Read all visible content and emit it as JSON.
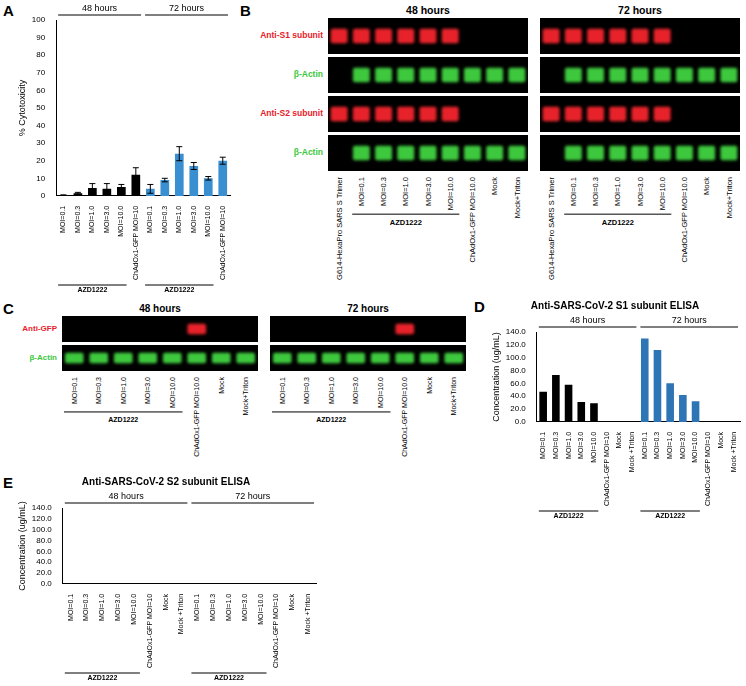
{
  "chart_data": [
    {
      "panel": "A",
      "type": "bar",
      "y_label": "% Cytotoxicity",
      "ylim": [
        0,
        100
      ],
      "yticks": [
        0,
        10,
        20,
        30,
        40,
        50,
        60,
        70,
        80,
        90,
        100
      ],
      "grid": false,
      "groups": [
        {
          "label": "48 hours",
          "color": "#000000",
          "subgroups": [
            {
              "label": "AZD1222",
              "categories": [
                "MOI=0.1",
                "MOI=0.3",
                "MOI=1.0",
                "MOI=3.0",
                "MOI=10.0"
              ],
              "values": [
                0.3,
                1.5,
                4.5,
                4,
                5
              ],
              "errors": [
                0.3,
                0.5,
                2.5,
                3,
                1.5
              ]
            },
            {
              "label": null,
              "categories": [
                "ChAdOx1-GFP MOI=10"
              ],
              "values": [
                12
              ],
              "errors": [
                4
              ]
            }
          ]
        },
        {
          "label": "72 hours",
          "color": "#3a8fd0",
          "subgroups": [
            {
              "label": "AZD1222",
              "categories": [
                "MOI=0.1",
                "MOI=0.3",
                "MOI=1.0",
                "MOI=3.0",
                "MOI=10.0"
              ],
              "values": [
                4,
                9,
                24,
                17,
                10
              ],
              "errors": [
                2.5,
                1,
                4,
                2,
                1
              ]
            },
            {
              "label": null,
              "categories": [
                "ChAdOx1-GFP MOI=10"
              ],
              "values": [
                20
              ],
              "errors": [
                2
              ]
            }
          ]
        }
      ]
    },
    {
      "panel": "D",
      "type": "bar",
      "title": "Anti-SARS-CoV-2 S1 subunit ELISA",
      "y_label": "Concentration (ug/mL)",
      "ylim": [
        0,
        140
      ],
      "yticks": [
        {
          "value": 0,
          "label": "0.0"
        },
        {
          "value": 20,
          "label": "20.0"
        },
        {
          "value": 40,
          "label": "40.0"
        },
        {
          "value": 60,
          "label": "60.0"
        },
        {
          "value": 80,
          "label": "80.0"
        },
        {
          "value": 100,
          "label": "100.0"
        },
        {
          "value": 120,
          "label": "120.0"
        },
        {
          "value": 140,
          "label": "140.0"
        }
      ],
      "grid": false,
      "groups": [
        {
          "label": "48 hours",
          "color": "#000000",
          "subgroups": [
            {
              "label": "AZD1222",
              "categories": [
                "MOI=0.1",
                "MOI=0.3",
                "MOI=1.0",
                "MOI=3.0",
                "MOI=10.0"
              ],
              "values": [
                47,
                73,
                58,
                31,
                29
              ]
            },
            {
              "label": null,
              "categories": [
                "ChAdOx1-GFP MOI=10",
                "Mock",
                "Mock +Triton"
              ],
              "values": [
                0,
                0,
                0
              ]
            }
          ]
        },
        {
          "label": "72 hours",
          "color": "#2e75b6",
          "subgroups": [
            {
              "label": "AZD1222",
              "categories": [
                "MOI=0.1",
                "MOI=0.3",
                "MOI=1.0",
                "MOI=3.0",
                "MOI=10.0"
              ],
              "values": [
                130,
                112,
                60,
                42,
                32
              ]
            },
            {
              "label": null,
              "categories": [
                "ChAdOx1-GFP MOI=10",
                "Mock",
                "Mock +Triton"
              ],
              "values": [
                0,
                0,
                0
              ]
            }
          ]
        }
      ]
    },
    {
      "panel": "E",
      "type": "bar",
      "title": "Anti-SARS-CoV-2 S2 subunit ELISA",
      "y_label": "Concentration (ug/mL)",
      "ylim": [
        0,
        140
      ],
      "yticks": [
        {
          "value": 0,
          "label": "0.0"
        },
        {
          "value": 20,
          "label": "20.0"
        },
        {
          "value": 40,
          "label": "40.0"
        },
        {
          "value": 60,
          "label": "60.0"
        },
        {
          "value": 80,
          "label": "80.0"
        },
        {
          "value": 100,
          "label": "100.0"
        },
        {
          "value": 120,
          "label": "120.0"
        },
        {
          "value": 140,
          "label": "140.0"
        }
      ],
      "grid": false,
      "groups": [
        {
          "label": "48 hours",
          "color": "#000000",
          "subgroups": [
            {
              "label": "AZD1222",
              "categories": [
                "MOI=0.1",
                "MOI=0.3",
                "MOI=1.0",
                "MOI=3.0",
                "MOI=10.0"
              ],
              "values": [
                0,
                0,
                0,
                0,
                0
              ]
            },
            {
              "label": null,
              "categories": [
                "ChAdOx1-GFP MOI=10",
                "Mock",
                "Mock +Triton"
              ],
              "values": [
                0,
                0,
                0
              ]
            }
          ]
        },
        {
          "label": "72 hours",
          "color": "#2e75b6",
          "subgroups": [
            {
              "label": "AZD1222",
              "categories": [
                "MOI=0.1",
                "MOI=0.3",
                "MOI=1.0",
                "MOI=3.0",
                "MOI=10.0"
              ],
              "values": [
                0,
                0,
                0,
                0,
                0
              ]
            },
            {
              "label": null,
              "categories": [
                "ChAdOx1-GFP MOI=10",
                "Mock",
                "Mock +Triton"
              ],
              "values": [
                0,
                0,
                0
              ]
            }
          ]
        }
      ]
    }
  ],
  "blots": [
    {
      "panel": "B",
      "rows": [
        {
          "label": "Anti-S1 subunit",
          "color": "#e8202a"
        },
        {
          "label": "β-Actin",
          "color": "#3cc83c"
        },
        {
          "label": "Anti-S2 subunit",
          "color": "#e8202a"
        },
        {
          "label": "β-Actin",
          "color": "#3cc83c"
        }
      ],
      "sections": [
        {
          "title": "48 hours",
          "lanes": [
            "G614-HexaPro SARS S Trimer",
            "MOI=0.1",
            "MOI=0.3",
            "MOI=1.0",
            "MOI=3.0",
            "MOI=10.0",
            "ChAdOx1-GFP MOI=10.0",
            "Mock",
            "Mock+Triton"
          ],
          "bracket": {
            "label": "AZD1222",
            "lanes": [
              "MOI=0.1",
              "MOI=0.3",
              "MOI=1.0",
              "MOI=3.0",
              "MOI=10.0"
            ]
          },
          "signal": [
            [
              true,
              true,
              true,
              true,
              true,
              true,
              false,
              false,
              false
            ],
            [
              false,
              true,
              true,
              true,
              true,
              true,
              true,
              true,
              true
            ],
            [
              true,
              true,
              true,
              true,
              true,
              true,
              false,
              false,
              false
            ],
            [
              false,
              true,
              true,
              true,
              true,
              true,
              true,
              true,
              true
            ]
          ]
        },
        {
          "title": "72 hours",
          "lanes": [
            "G614-HexaPro SARS S Trimer",
            "MOI=0.1",
            "MOI=0.3",
            "MOI=1.0",
            "MOI=3.0",
            "MOI=10.0",
            "ChAdOx1-GFP MOI=10.0",
            "Mock",
            "Mock+Triton"
          ],
          "bracket": {
            "label": "AZD1222",
            "lanes": [
              "MOI=0.1",
              "MOI=0.3",
              "MOI=1.0",
              "MOI=3.0",
              "MOI=10.0"
            ]
          },
          "signal": [
            [
              true,
              true,
              true,
              true,
              true,
              true,
              false,
              false,
              false
            ],
            [
              false,
              true,
              true,
              true,
              true,
              true,
              true,
              true,
              true
            ],
            [
              true,
              true,
              true,
              true,
              true,
              true,
              false,
              false,
              false
            ],
            [
              false,
              true,
              true,
              true,
              true,
              true,
              true,
              true,
              true
            ]
          ]
        }
      ]
    },
    {
      "panel": "C",
      "rows": [
        {
          "label": "Anti-GFP",
          "color": "#e8202a"
        },
        {
          "label": "β-Actin",
          "color": "#3cc83c"
        }
      ],
      "sections": [
        {
          "title": "48 hours",
          "lanes": [
            "MOI=0.1",
            "MOI=0.3",
            "MOI=1.0",
            "MOI=3.0",
            "MOI=10.0",
            "ChAdOx1-GFP MOI=10.0",
            "Mock",
            "Mock+Triton"
          ],
          "bracket": {
            "label": "AZD1222",
            "lanes": [
              "MOI=0.1",
              "MOI=0.3",
              "MOI=1.0",
              "MOI=3.0",
              "MOI=10.0"
            ]
          },
          "signal": [
            [
              false,
              false,
              false,
              false,
              false,
              true,
              false,
              false
            ],
            [
              true,
              true,
              true,
              true,
              true,
              true,
              true,
              true
            ]
          ]
        },
        {
          "title": "72 hours",
          "lanes": [
            "MOI=0.1",
            "MOI=0.3",
            "MOI=1.0",
            "MOI=3.0",
            "MOI=10.0",
            "ChAdOx1-GFP MOI=10.0",
            "Mock",
            "Mock+Triton"
          ],
          "bracket": {
            "label": "AZD1222",
            "lanes": [
              "MOI=0.1",
              "MOI=0.3",
              "MOI=1.0",
              "MOI=3.0",
              "MOI=10.0"
            ]
          },
          "signal": [
            [
              false,
              false,
              false,
              false,
              false,
              true,
              false,
              false
            ],
            [
              true,
              true,
              true,
              true,
              true,
              true,
              true,
              true
            ]
          ]
        }
      ]
    }
  ]
}
